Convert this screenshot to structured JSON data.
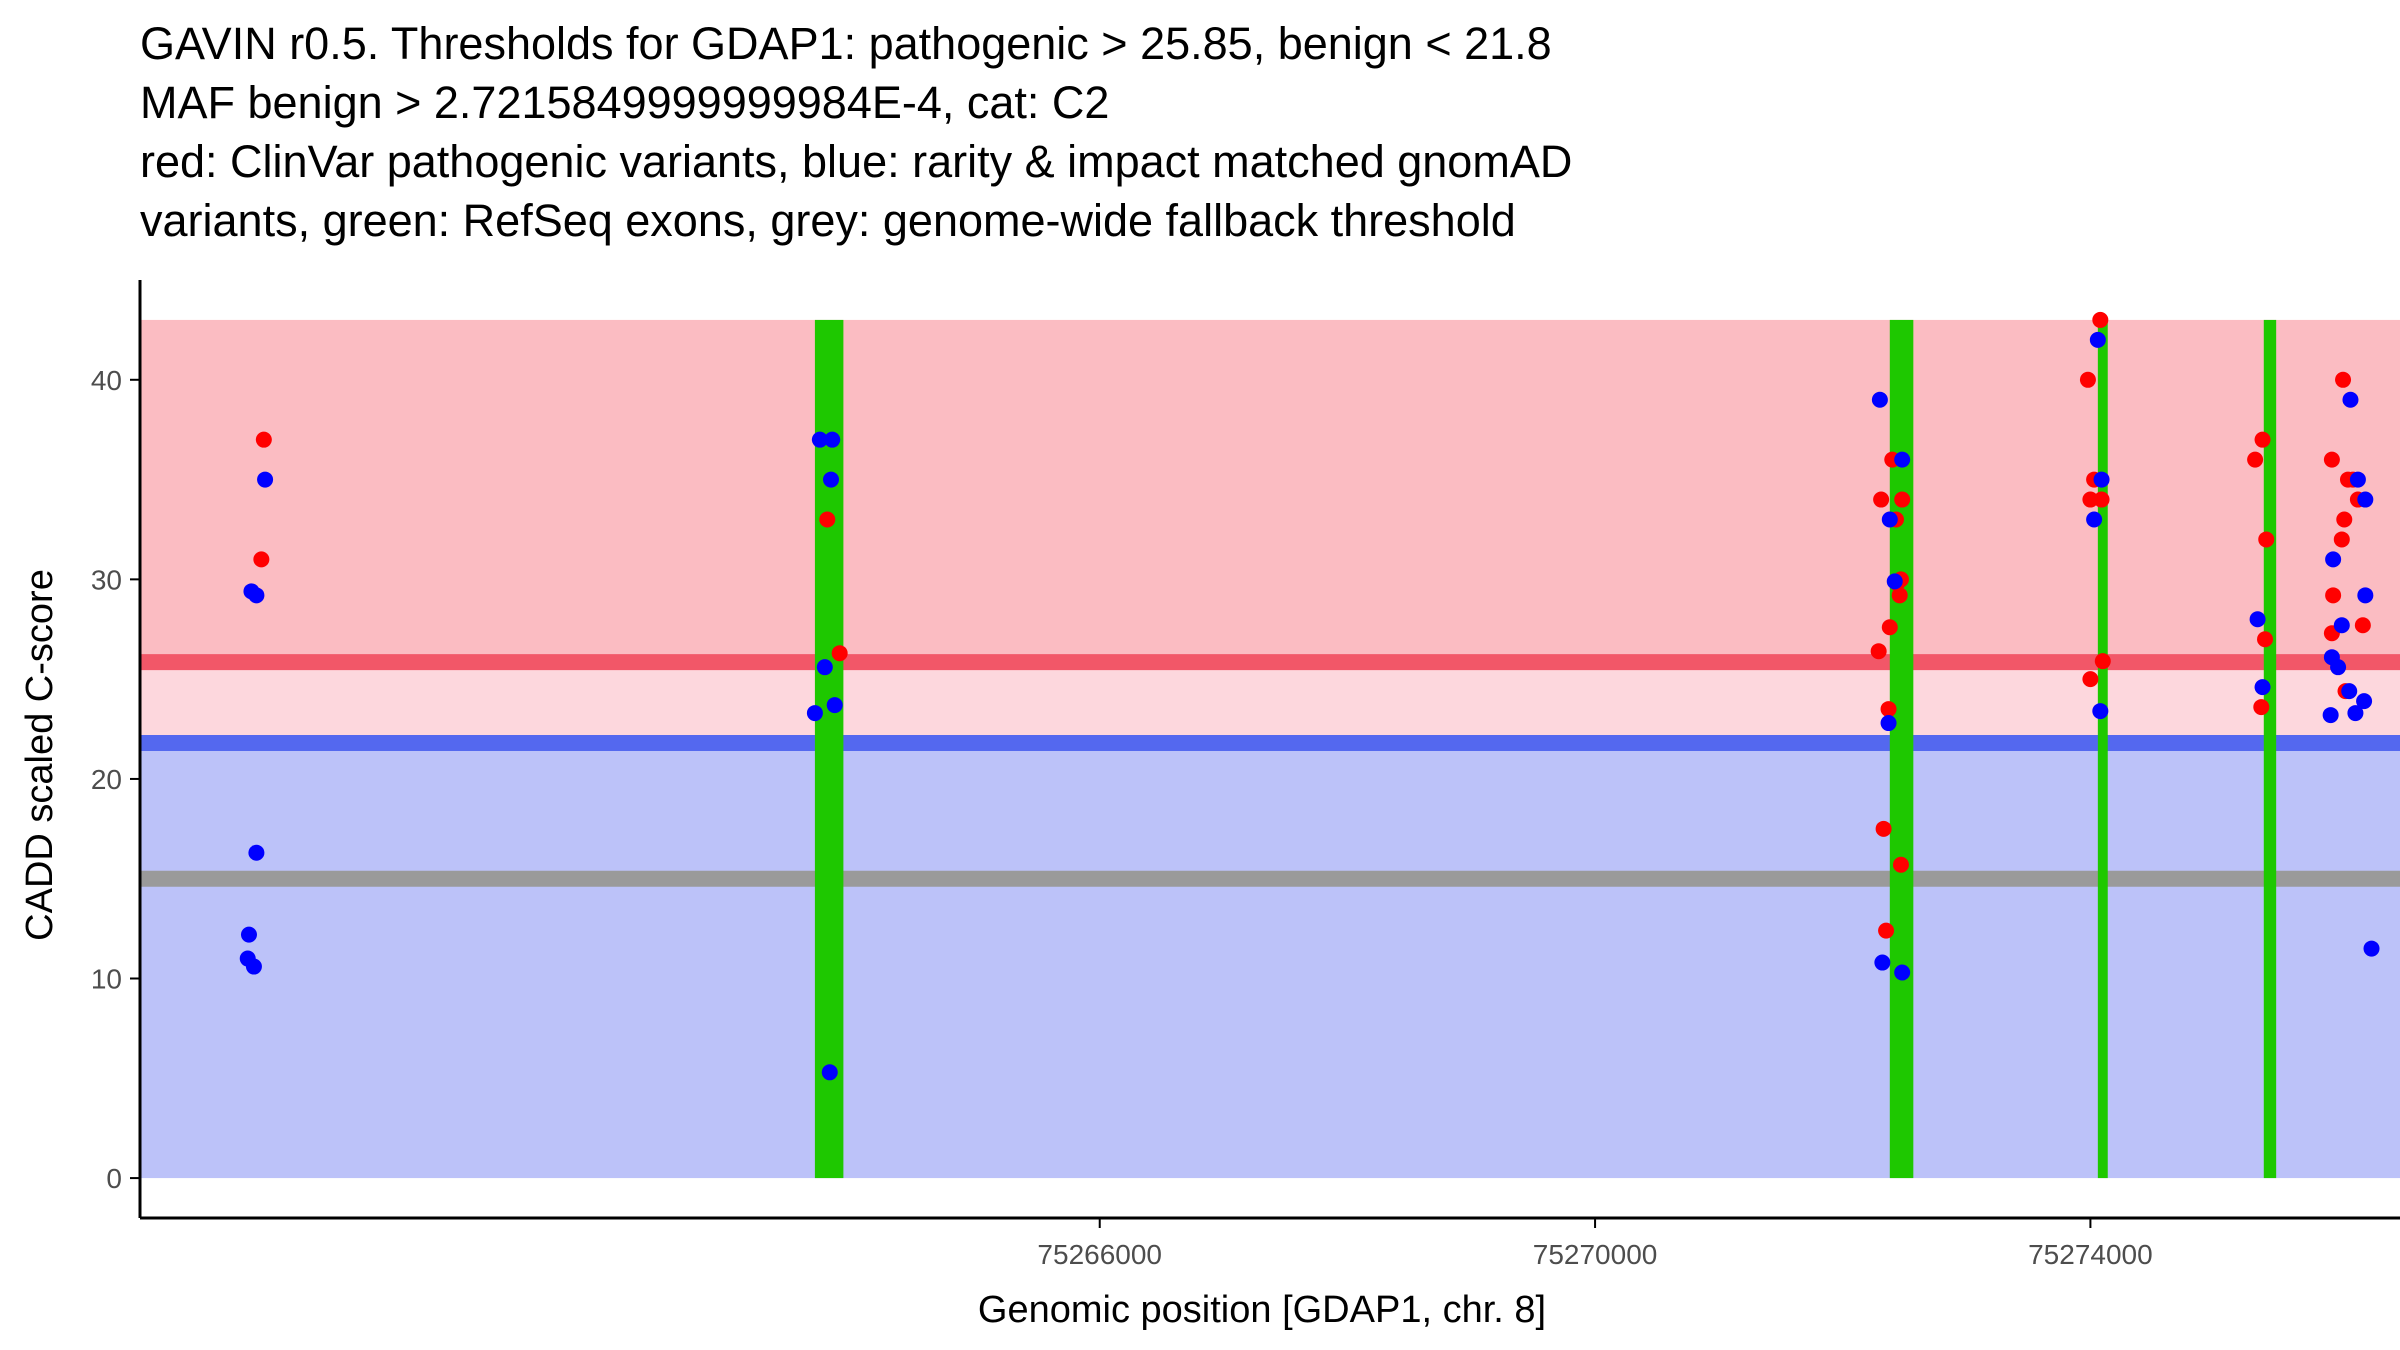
{
  "title_lines": [
    "GAVIN r0.5. Thresholds for GDAP1: pathogenic > 25.85, benign < 21.8",
    "MAF benign > 2.7215849999999984E-4, cat: C2",
    "red: ClinVar pathogenic variants, blue: rarity & impact matched gnomAD",
    "variants, green: RefSeq exons, grey: genome-wide fallback threshold"
  ],
  "colors": {
    "pathogenic_region": "#fbbcc2",
    "grey_zone": "#fdd7dd",
    "benign_region": "#bcc2f9",
    "pathogenic_line": "#f25768",
    "benign_line": "#5468ef",
    "fallback_line": "#9a9a9a",
    "exon": "#1ec800",
    "clinvar_point": "#ff0000",
    "gnomad_point": "#0000ff",
    "axis": "#000000"
  },
  "chart_data": {
    "type": "scatter",
    "title": "GAVIN r0.5. Thresholds for GDAP1: pathogenic > 25.85, benign < 21.8",
    "xlabel": "Genomic position [GDAP1, chr. 8]",
    "ylabel": "CADD scaled C-score",
    "xlim": [
      75258250,
      75276500
    ],
    "ylim": [
      -2,
      45
    ],
    "xticks": [
      75266000,
      75270000,
      75274000
    ],
    "yticks": [
      0,
      10,
      20,
      30,
      40
    ],
    "grid": false,
    "regions": {
      "pathogenic": {
        "from": 25.85,
        "to": 43
      },
      "grey_zone": {
        "from": 21.8,
        "to": 25.85
      },
      "benign": {
        "from": 0,
        "to": 21.8
      },
      "x_range": [
        75258250,
        75276500
      ]
    },
    "thresholds": {
      "pathogenic": 25.85,
      "benign": 21.8,
      "fallback": 15
    },
    "exons": [
      {
        "start": 75263700,
        "end": 75263930
      },
      {
        "start": 75272380,
        "end": 75272570
      },
      {
        "start": 75274060,
        "end": 75274140
      },
      {
        "start": 75275400,
        "end": 75275500
      }
    ],
    "series": [
      {
        "name": "ClinVar pathogenic variants",
        "color": "red",
        "points": [
          [
            75259250,
            37
          ],
          [
            75259230,
            31
          ],
          [
            75263800,
            33
          ],
          [
            75263900,
            26.3
          ],
          [
            75272400,
            36
          ],
          [
            75272310,
            34
          ],
          [
            75272430,
            33
          ],
          [
            75272480,
            34
          ],
          [
            75272470,
            30
          ],
          [
            75272440,
            29.8
          ],
          [
            75272460,
            29.2
          ],
          [
            75272380,
            27.6
          ],
          [
            75272290,
            26.4
          ],
          [
            75272370,
            23.5
          ],
          [
            75272330,
            17.5
          ],
          [
            75272470,
            15.7
          ],
          [
            75272350,
            12.4
          ],
          [
            75274080,
            43
          ],
          [
            75273980,
            40
          ],
          [
            75274030,
            35
          ],
          [
            75274000,
            34
          ],
          [
            75274090,
            34
          ],
          [
            75274100,
            25.9
          ],
          [
            75274000,
            25
          ],
          [
            75275330,
            36
          ],
          [
            75275390,
            37
          ],
          [
            75275420,
            32
          ],
          [
            75275410,
            27
          ],
          [
            75275380,
            23.6
          ],
          [
            75276040,
            40
          ],
          [
            75275950,
            36
          ],
          [
            75276080,
            35
          ],
          [
            75276120,
            35
          ],
          [
            75276050,
            33
          ],
          [
            75276030,
            32
          ],
          [
            75276160,
            34
          ],
          [
            75275960,
            29.2
          ],
          [
            75275950,
            27.3
          ],
          [
            75276200,
            27.7
          ],
          [
            75276060,
            24.4
          ]
        ]
      },
      {
        "name": "rarity & impact matched gnomAD variants",
        "color": "blue",
        "points": [
          [
            75259260,
            35
          ],
          [
            75259150,
            29.4
          ],
          [
            75259190,
            29.2
          ],
          [
            75259190,
            16.3
          ],
          [
            75259130,
            12.2
          ],
          [
            75259120,
            11
          ],
          [
            75259170,
            10.6
          ],
          [
            75263740,
            37
          ],
          [
            75263840,
            37
          ],
          [
            75263830,
            35
          ],
          [
            75263780,
            25.6
          ],
          [
            75263700,
            23.3
          ],
          [
            75263860,
            23.7
          ],
          [
            75263820,
            5.3
          ],
          [
            75272300,
            39
          ],
          [
            75272480,
            36
          ],
          [
            75272380,
            33
          ],
          [
            75272420,
            29.9
          ],
          [
            75272370,
            22.8
          ],
          [
            75272320,
            10.8
          ],
          [
            75272480,
            10.3
          ],
          [
            75274060,
            42
          ],
          [
            75274090,
            35
          ],
          [
            75274030,
            33
          ],
          [
            75274080,
            23.4
          ],
          [
            75275350,
            28
          ],
          [
            75275390,
            24.6
          ],
          [
            75276100,
            39
          ],
          [
            75276160,
            35
          ],
          [
            75276220,
            34
          ],
          [
            75275960,
            31
          ],
          [
            75276030,
            27.7
          ],
          [
            75276220,
            29.2
          ],
          [
            75275950,
            26.1
          ],
          [
            75276000,
            25.6
          ],
          [
            75276090,
            24.4
          ],
          [
            75276210,
            23.9
          ],
          [
            75275940,
            23.2
          ],
          [
            75276140,
            23.3
          ],
          [
            75276270,
            11.5
          ]
        ]
      }
    ]
  }
}
